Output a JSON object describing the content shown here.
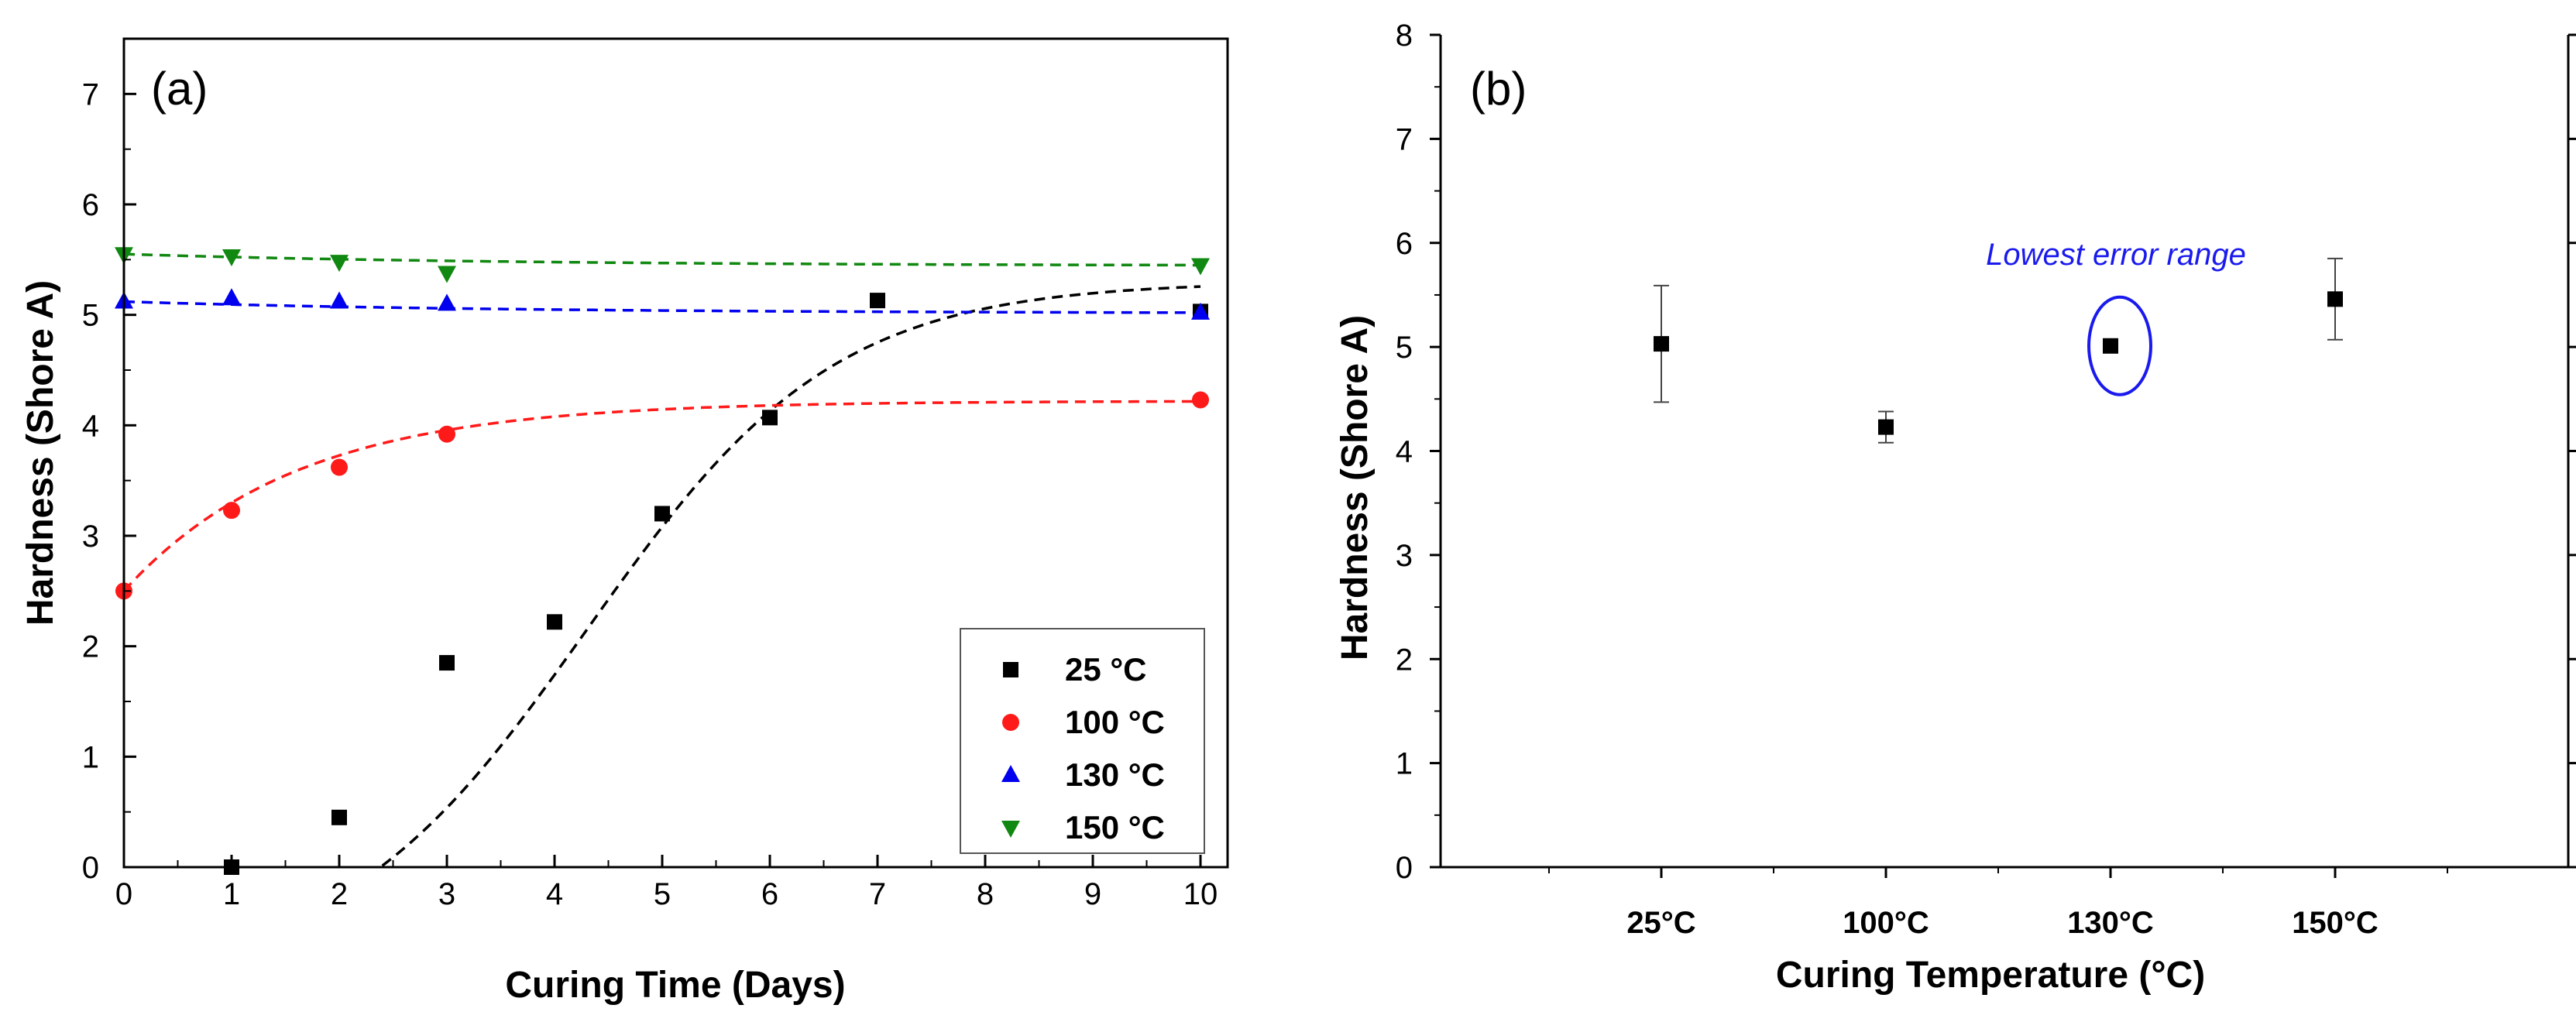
{
  "colors": {
    "s25": "#000000",
    "s100": "#ff1a1a",
    "s130": "#0000ee",
    "s150": "#118811",
    "annotation": "#1a1aee",
    "axis": "#000000"
  },
  "chart_data": [
    {
      "panel": "(a)",
      "type": "scatter",
      "xlabel": "Curing Time (Days)",
      "ylabel": "Hardness (Shore A)",
      "xlim": [
        0,
        10
      ],
      "ylim": [
        0,
        7.5
      ],
      "xticks": [
        0,
        1,
        2,
        3,
        4,
        5,
        6,
        7,
        8,
        9,
        10
      ],
      "yticks": [
        0,
        1,
        2,
        3,
        4,
        5,
        6,
        7
      ],
      "legend_position": "bottom-right",
      "series": [
        {
          "name": "25 °C",
          "marker": "square",
          "color_key": "s25",
          "x": [
            1,
            2,
            3,
            4,
            5,
            6,
            7,
            10
          ],
          "y": [
            0.0,
            0.45,
            1.85,
            2.22,
            3.2,
            4.07,
            5.13,
            5.03
          ],
          "fit": "sigmoid"
        },
        {
          "name": "100 °C",
          "marker": "circle",
          "color_key": "s100",
          "x": [
            0,
            1,
            2,
            3,
            10
          ],
          "y": [
            2.5,
            3.23,
            3.62,
            3.92,
            4.23
          ],
          "fit": "exponential"
        },
        {
          "name": "130 °C",
          "marker": "triangle-up",
          "color_key": "s130",
          "x": [
            0,
            1,
            2,
            3,
            10
          ],
          "y": [
            5.12,
            5.15,
            5.12,
            5.1,
            5.02
          ],
          "fit": "flat"
        },
        {
          "name": "150 °C",
          "marker": "triangle-down",
          "color_key": "s150",
          "x": [
            0,
            1,
            2,
            3,
            10
          ],
          "y": [
            5.55,
            5.53,
            5.48,
            5.38,
            5.45
          ],
          "fit": "flat"
        }
      ]
    },
    {
      "panel": "(b)",
      "type": "scatter",
      "xlabel": "Curing Temperature (°C)",
      "ylabel": "Hardness (Shore A)",
      "categories": [
        "25°C",
        "100°C",
        "130°C",
        "150°C"
      ],
      "ylim": [
        0,
        8
      ],
      "yticks": [
        0,
        1,
        2,
        3,
        4,
        5,
        6,
        7,
        8
      ],
      "values": [
        5.03,
        4.23,
        5.01,
        5.46
      ],
      "errors": [
        0.56,
        0.15,
        0.02,
        0.39
      ],
      "annotation": {
        "text": "Lowest error range",
        "target_category": "130°C"
      }
    }
  ]
}
